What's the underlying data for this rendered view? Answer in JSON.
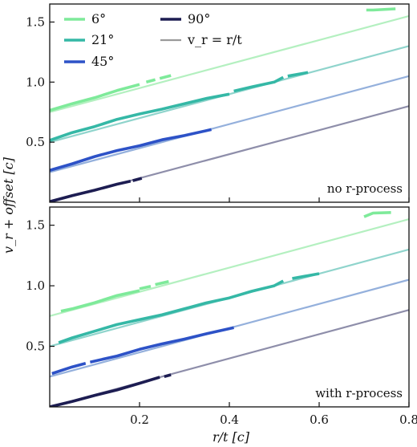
{
  "chart_data": {
    "type": "line",
    "xlabel": "r/t [c]",
    "ylabel": "v_r + offset [c]",
    "xlim": [
      0.0,
      0.8
    ],
    "ylim": [
      0.0,
      1.65
    ],
    "x_ticks": [
      "0.2",
      "0.4",
      "0.6",
      "0.8"
    ],
    "x_tick_values": [
      0.2,
      0.4,
      0.6,
      0.8
    ],
    "y_ticks": [
      "0.5",
      "1.0",
      "1.5"
    ],
    "y_tick_values": [
      0.5,
      1.0,
      1.5
    ],
    "legend": {
      "placement": "upper-left",
      "entries": [
        {
          "label": "6°",
          "color": "#7eea9a"
        },
        {
          "label": "21°",
          "color": "#35b8a6"
        },
        {
          "label": "45°",
          "color": "#2d52c7"
        },
        {
          "label": "90°",
          "color": "#1d1d52"
        },
        {
          "label": "v_r = r/t",
          "color": "#9a9a9a"
        }
      ]
    },
    "reference_lines": [
      {
        "offset": 0.75,
        "color": "#b4f0c0"
      },
      {
        "offset": 0.5,
        "color": "#8fd4cc"
      },
      {
        "offset": 0.25,
        "color": "#94b0dc"
      },
      {
        "offset": 0.0,
        "color": "#8e8eaa"
      }
    ],
    "panels": [
      {
        "label": "no r-process",
        "series": [
          {
            "angle": "6°",
            "color": "#7eea9a",
            "segments": [
              [
                [
                  0.0,
                  0.765
                ],
                [
                  0.05,
                  0.82
                ],
                [
                  0.1,
                  0.87
                ],
                [
                  0.15,
                  0.93
                ],
                [
                  0.2,
                  0.98
                ]
              ],
              [
                [
                  0.215,
                  1.0
                ],
                [
                  0.235,
                  1.02
                ]
              ],
              [
                [
                  0.245,
                  1.03
                ],
                [
                  0.27,
                  1.055
                ]
              ],
              [
                [
                  0.705,
                  1.6
                ],
                [
                  0.72,
                  1.6
                ],
                [
                  0.77,
                  1.61
                ]
              ]
            ]
          },
          {
            "angle": "21°",
            "color": "#35b8a6",
            "segments": [
              [
                [
                  0.0,
                  0.515
                ],
                [
                  0.05,
                  0.58
                ],
                [
                  0.1,
                  0.63
                ],
                [
                  0.15,
                  0.69
                ],
                [
                  0.2,
                  0.735
                ],
                [
                  0.25,
                  0.775
                ],
                [
                  0.3,
                  0.82
                ],
                [
                  0.35,
                  0.865
                ],
                [
                  0.4,
                  0.9
                ]
              ],
              [
                [
                  0.41,
                  0.925
                ],
                [
                  0.45,
                  0.96
                ],
                [
                  0.5,
                  1.0
                ],
                [
                  0.52,
                  1.04
                ]
              ],
              [
                [
                  0.53,
                  1.05
                ],
                [
                  0.575,
                  1.08
                ]
              ]
            ]
          },
          {
            "angle": "45°",
            "color": "#2d52c7",
            "segments": [
              [
                [
                  0.0,
                  0.265
                ],
                [
                  0.05,
                  0.32
                ],
                [
                  0.1,
                  0.38
                ],
                [
                  0.15,
                  0.43
                ],
                [
                  0.2,
                  0.47
                ],
                [
                  0.25,
                  0.52
                ],
                [
                  0.3,
                  0.555
                ],
                [
                  0.36,
                  0.605
                ]
              ]
            ]
          },
          {
            "angle": "90°",
            "color": "#1d1d52",
            "segments": [
              [
                [
                  0.0,
                  0.005
                ],
                [
                  0.05,
                  0.055
                ],
                [
                  0.1,
                  0.1
                ],
                [
                  0.15,
                  0.15
                ],
                [
                  0.18,
                  0.175
                ]
              ],
              [
                [
                  0.185,
                  0.18
                ],
                [
                  0.205,
                  0.2
                ]
              ]
            ]
          }
        ]
      },
      {
        "label": "with r-process",
        "series": [
          {
            "angle": "6°",
            "color": "#7eea9a",
            "segments": [
              [
                [
                  0.025,
                  0.79
                ],
                [
                  0.05,
                  0.81
                ],
                [
                  0.1,
                  0.86
                ],
                [
                  0.15,
                  0.92
                ],
                [
                  0.2,
                  0.96
                ]
              ],
              [
                [
                  0.2,
                  0.975
                ],
                [
                  0.225,
                  0.995
                ]
              ],
              [
                [
                  0.235,
                  1.01
                ],
                [
                  0.265,
                  1.035
                ]
              ],
              [
                [
                  0.7,
                  1.57
                ],
                [
                  0.72,
                  1.6
                ],
                [
                  0.76,
                  1.605
                ]
              ]
            ]
          },
          {
            "angle": "21°",
            "color": "#35b8a6",
            "segments": [
              [
                [
                  0.02,
                  0.53
                ],
                [
                  0.05,
                  0.57
                ],
                [
                  0.1,
                  0.625
                ],
                [
                  0.15,
                  0.68
                ],
                [
                  0.2,
                  0.72
                ],
                [
                  0.25,
                  0.76
                ],
                [
                  0.3,
                  0.81
                ],
                [
                  0.35,
                  0.86
                ],
                [
                  0.4,
                  0.9
                ],
                [
                  0.45,
                  0.955
                ],
                [
                  0.5,
                  1.0
                ],
                [
                  0.52,
                  1.04
                ]
              ],
              [
                [
                  0.54,
                  1.06
                ],
                [
                  0.6,
                  1.1
                ]
              ]
            ]
          },
          {
            "angle": "45°",
            "color": "#2d52c7",
            "segments": [
              [
                [
                  0.005,
                  0.275
                ],
                [
                  0.05,
                  0.33
                ],
                [
                  0.08,
                  0.36
                ]
              ],
              [
                [
                  0.09,
                  0.37
                ],
                [
                  0.15,
                  0.42
                ],
                [
                  0.2,
                  0.475
                ],
                [
                  0.25,
                  0.52
                ],
                [
                  0.3,
                  0.56
                ],
                [
                  0.35,
                  0.605
                ],
                [
                  0.41,
                  0.655
                ]
              ]
            ]
          },
          {
            "angle": "90°",
            "color": "#1d1d52",
            "segments": [
              [
                [
                  0.0,
                  0.0
                ],
                [
                  0.05,
                  0.045
                ],
                [
                  0.1,
                  0.095
                ],
                [
                  0.15,
                  0.14
                ],
                [
                  0.2,
                  0.195
                ],
                [
                  0.245,
                  0.245
                ]
              ],
              [
                [
                  0.255,
                  0.25
                ],
                [
                  0.27,
                  0.265
                ]
              ]
            ]
          }
        ]
      }
    ]
  }
}
